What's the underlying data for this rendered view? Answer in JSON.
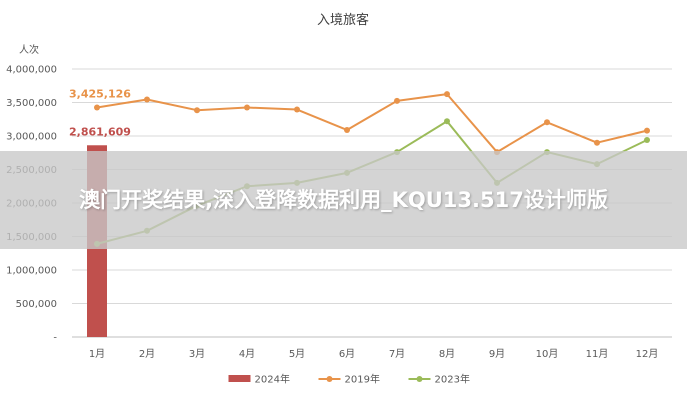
{
  "chart_data": {
    "type": "bar",
    "title": "入境旅客",
    "ylabel": "人次",
    "xlabel": "",
    "categories": [
      "1月",
      "2月",
      "3月",
      "4月",
      "5月",
      "6月",
      "7月",
      "8月",
      "9月",
      "10月",
      "11月",
      "12月"
    ],
    "y_tick_labels": [
      "-",
      "500,000",
      "1,000,000",
      "1,500,000",
      "2,000,000",
      "2,500,000",
      "3,000,000",
      "3,500,000",
      "4,000,000"
    ],
    "ylim": [
      0,
      4000000
    ],
    "grid": true,
    "legend_position": "bottom",
    "series": [
      {
        "name": "2024年",
        "type": "bar",
        "color": "#C0504D",
        "values": [
          2861609,
          null,
          null,
          null,
          null,
          null,
          null,
          null,
          null,
          null,
          null,
          null
        ],
        "data_labels": [
          "2,861,609",
          null,
          null,
          null,
          null,
          null,
          null,
          null,
          null,
          null,
          null,
          null
        ]
      },
      {
        "name": "2019年",
        "type": "line",
        "color": "#E8934A",
        "values": [
          3425126,
          3545000,
          3385000,
          3425000,
          3395000,
          3090000,
          3525000,
          3625000,
          2760000,
          3205000,
          2900000,
          3080000
        ],
        "data_labels": [
          "3,425,126",
          null,
          null,
          null,
          null,
          null,
          null,
          null,
          null,
          null,
          null,
          null
        ]
      },
      {
        "name": "2023年",
        "type": "line",
        "color": "#9BBB59",
        "values": [
          1390000,
          1585000,
          1960000,
          2250000,
          2300000,
          2450000,
          2760000,
          3220000,
          2300000,
          2760000,
          2580000,
          2940000
        ],
        "data_labels": [
          null,
          null,
          null,
          null,
          null,
          null,
          null,
          null,
          null,
          null,
          null,
          null
        ]
      }
    ]
  },
  "overlay": {
    "watermark_text": "澳门开奖结果,深入登降数据利用_KQU13.517设计师版"
  }
}
